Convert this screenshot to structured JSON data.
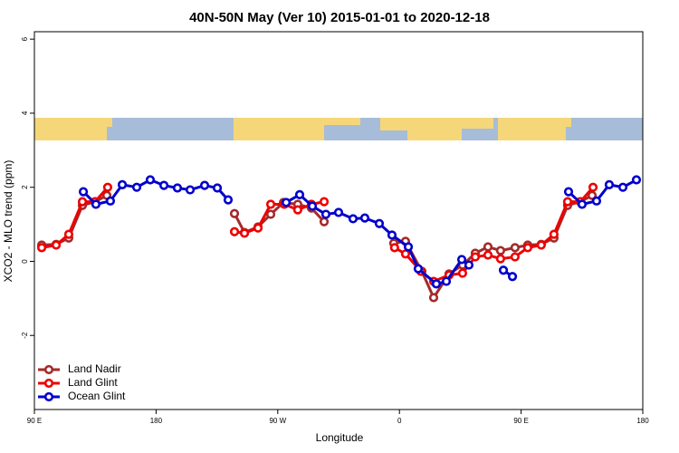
{
  "chart_data": {
    "type": "line",
    "title": "40N-50N May (Ver 10)   2015-01-01 to 2020-12-18",
    "xlabel": "Longitude",
    "ylabel": "XCO2 - MLO trend (ppm)",
    "xlim": [
      90,
      540
    ],
    "ylim": [
      -4,
      6.2
    ],
    "xticks": [
      {
        "value": 90,
        "label": "90 E"
      },
      {
        "value": 180,
        "label": "180"
      },
      {
        "value": 270,
        "label": "90 W"
      },
      {
        "value": 360,
        "label": "0"
      },
      {
        "value": 450,
        "label": "90 E"
      },
      {
        "value": 540,
        "label": "180"
      }
    ],
    "yticks": [
      -2,
      0,
      2,
      4,
      6
    ],
    "legend": "lower left",
    "series": [
      {
        "name": "Land Nadir",
        "color": "#a52a2a",
        "x": [
          95.4,
          106.1,
          115.4,
          125.5,
          134.9,
          143.6,
          null,
          238,
          245.4,
          255.4,
          264.8,
          274.2,
          284.8,
          294.9,
          304.3,
          null,
          355.8,
          364.5,
          376.6,
          385.3,
          396.7,
          406.7,
          416.1,
          425.5,
          434.8,
          445.5,
          454.9,
          464.9,
          474.3,
          484.4,
          493.8,
          502.5
        ],
        "values": [
          0.44,
          0.46,
          0.63,
          1.51,
          1.61,
          1.78,
          null,
          1.29,
          0.78,
          0.93,
          1.27,
          1.59,
          1.54,
          1.44,
          1.07,
          null,
          0.49,
          0.54,
          -0.27,
          -0.98,
          -0.34,
          -0.1,
          0.22,
          0.39,
          0.29,
          0.37,
          0.44,
          0.46,
          0.63,
          1.51,
          1.61,
          1.78
        ]
      },
      {
        "name": "Land Glint",
        "color": "#ee0000",
        "x": [
          95.4,
          106.1,
          115.4,
          125.5,
          134.9,
          144.2,
          null,
          238,
          245.4,
          255.4,
          264.8,
          274.9,
          284.8,
          294.9,
          304.3,
          null,
          356.4,
          364.5,
          375.9,
          385.3,
          396.7,
          406.7,
          416.1,
          425.5,
          434.8,
          445.5,
          454.9,
          464.9,
          474.3,
          484.4,
          493.8,
          503.2
        ],
        "values": [
          0.37,
          0.44,
          0.73,
          1.61,
          1.61,
          2.0,
          null,
          0.8,
          0.76,
          0.9,
          1.54,
          1.54,
          1.39,
          1.54,
          1.61,
          null,
          0.37,
          0.2,
          -0.27,
          -0.54,
          -0.37,
          -0.32,
          0.12,
          0.17,
          0.07,
          0.12,
          0.37,
          0.44,
          0.73,
          1.61,
          1.61,
          2.0
        ]
      },
      {
        "name": "Ocean Glint",
        "color": "#0000cc",
        "x": [
          126.2,
          135.5,
          146.2,
          155,
          165.7,
          175.7,
          185.8,
          195.8,
          205.2,
          215.9,
          225.3,
          233.3,
          null,
          276.2,
          286.2,
          295.6,
          305.6,
          315,
          325.7,
          334.4,
          345.1,
          354.5,
          366.6,
          373.9,
          387.3,
          394.7,
          406.1,
          411.4,
          null,
          436.9,
          443.6,
          null,
          485.1,
          495.1,
          505.8,
          515.2,
          525.3,
          535.3
        ],
        "values": [
          1.88,
          1.54,
          1.63,
          2.07,
          2.0,
          2.2,
          2.05,
          1.98,
          1.93,
          2.05,
          1.98,
          1.66,
          null,
          1.59,
          1.8,
          1.49,
          1.27,
          1.32,
          1.15,
          1.17,
          1.02,
          0.71,
          0.39,
          -0.2,
          -0.61,
          -0.54,
          0.05,
          -0.1,
          null,
          -0.24,
          -0.41,
          null,
          1.88,
          1.54,
          1.63,
          2.07,
          2.0,
          2.2
        ]
      }
    ]
  }
}
